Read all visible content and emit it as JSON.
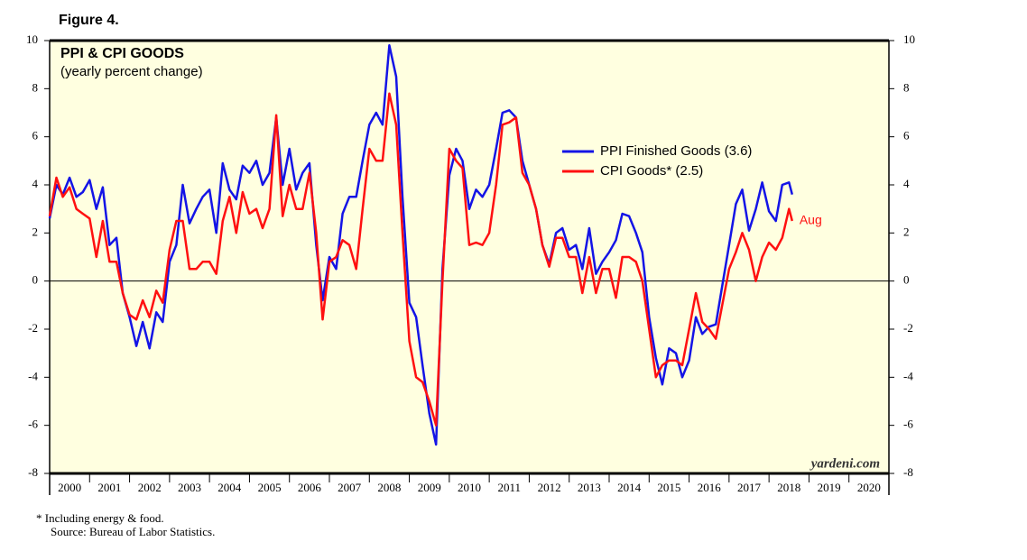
{
  "chart_data": {
    "type": "line",
    "figure_label": "Figure 4.",
    "title": "PPI & CPI GOODS",
    "subtitle": "(yearly percent change)",
    "watermark": "yardeni.com",
    "annotation": "Aug",
    "footnote": "* Including energy & food.",
    "source": "Source: Bureau of Labor Statistics.",
    "x": [
      2000.0,
      2000.17,
      2000.33,
      2000.5,
      2000.67,
      2000.83,
      2001.0,
      2001.17,
      2001.33,
      2001.5,
      2001.67,
      2001.83,
      2002.0,
      2002.17,
      2002.33,
      2002.5,
      2002.67,
      2002.83,
      2003.0,
      2003.17,
      2003.33,
      2003.5,
      2003.67,
      2003.83,
      2004.0,
      2004.17,
      2004.33,
      2004.5,
      2004.67,
      2004.83,
      2005.0,
      2005.17,
      2005.33,
      2005.5,
      2005.67,
      2005.83,
      2006.0,
      2006.17,
      2006.33,
      2006.5,
      2006.67,
      2006.83,
      2007.0,
      2007.17,
      2007.33,
      2007.5,
      2007.67,
      2007.83,
      2008.0,
      2008.17,
      2008.33,
      2008.5,
      2008.67,
      2008.83,
      2009.0,
      2009.17,
      2009.33,
      2009.5,
      2009.67,
      2009.83,
      2010.0,
      2010.17,
      2010.33,
      2010.5,
      2010.67,
      2010.83,
      2011.0,
      2011.17,
      2011.33,
      2011.5,
      2011.67,
      2011.83,
      2012.0,
      2012.17,
      2012.33,
      2012.5,
      2012.67,
      2012.83,
      2013.0,
      2013.17,
      2013.33,
      2013.5,
      2013.67,
      2013.83,
      2014.0,
      2014.17,
      2014.33,
      2014.5,
      2014.67,
      2014.83,
      2015.0,
      2015.17,
      2015.33,
      2015.5,
      2015.67,
      2015.83,
      2016.0,
      2016.17,
      2016.33,
      2016.5,
      2016.67,
      2016.83,
      2017.0,
      2017.17,
      2017.33,
      2017.5,
      2017.67,
      2017.83,
      2018.0,
      2018.17,
      2018.33,
      2018.5,
      2018.58
    ],
    "series": [
      {
        "name": "PPI Finished Goods (3.6)",
        "color": "#1414e6",
        "values": [
          2.6,
          4.0,
          3.6,
          4.3,
          3.5,
          3.7,
          4.2,
          3.0,
          3.9,
          1.5,
          1.8,
          -0.5,
          -1.5,
          -2.7,
          -1.7,
          -2.8,
          -1.3,
          -1.7,
          0.8,
          1.5,
          4.0,
          2.4,
          3.0,
          3.5,
          3.8,
          2.0,
          4.9,
          3.8,
          3.4,
          4.8,
          4.5,
          5.0,
          4.0,
          4.5,
          6.8,
          4.0,
          5.5,
          3.8,
          4.5,
          4.9,
          1.5,
          -0.8,
          1.0,
          0.5,
          2.8,
          3.5,
          3.5,
          5.0,
          6.5,
          7.0,
          6.5,
          9.8,
          8.5,
          3.5,
          -0.9,
          -1.5,
          -3.5,
          -5.5,
          -6.8,
          0.5,
          4.4,
          5.5,
          5.0,
          3.0,
          3.8,
          3.5,
          4.0,
          5.5,
          7.0,
          7.1,
          6.8,
          5.0,
          4.0,
          3.0,
          1.5,
          0.7,
          2.0,
          2.2,
          1.3,
          1.5,
          0.5,
          2.2,
          0.3,
          0.8,
          1.2,
          1.7,
          2.8,
          2.7,
          2.0,
          1.2,
          -1.5,
          -3.2,
          -4.3,
          -2.8,
          -3.0,
          -4.0,
          -3.3,
          -1.5,
          -2.2,
          -1.9,
          -1.8,
          -0.2,
          1.5,
          3.2,
          3.8,
          2.1,
          3.0,
          4.1,
          2.9,
          2.5,
          4.0,
          4.1,
          3.6
        ]
      },
      {
        "name": "CPI Goods* (2.5)",
        "color": "#ff1010",
        "values": [
          2.7,
          4.3,
          3.5,
          3.9,
          3.0,
          2.8,
          2.6,
          1.0,
          2.5,
          0.8,
          0.8,
          -0.5,
          -1.4,
          -1.6,
          -0.8,
          -1.5,
          -0.4,
          -0.9,
          1.3,
          2.5,
          2.5,
          0.5,
          0.5,
          0.8,
          0.8,
          0.3,
          2.5,
          3.5,
          2.0,
          3.7,
          2.8,
          3.0,
          2.2,
          3.0,
          6.9,
          2.7,
          4.0,
          3.0,
          3.0,
          4.5,
          2.0,
          -1.6,
          0.8,
          1.0,
          1.7,
          1.5,
          0.5,
          3.0,
          5.5,
          5.0,
          5.0,
          7.8,
          6.5,
          2.0,
          -2.5,
          -4.0,
          -4.2,
          -5.0,
          -6.0,
          0.0,
          5.5,
          5.0,
          4.7,
          1.5,
          1.6,
          1.5,
          2.0,
          4.0,
          6.5,
          6.6,
          6.8,
          4.5,
          4.0,
          3.0,
          1.5,
          0.6,
          1.8,
          1.8,
          1.0,
          1.0,
          -0.5,
          1.0,
          -0.5,
          0.5,
          0.5,
          -0.7,
          1.0,
          1.0,
          0.8,
          0.0,
          -2.0,
          -4.0,
          -3.5,
          -3.3,
          -3.3,
          -3.5,
          -2.0,
          -0.5,
          -1.7,
          -2.0,
          -2.4,
          -1.0,
          0.5,
          1.2,
          2.0,
          1.3,
          0.0,
          1.0,
          1.6,
          1.3,
          1.8,
          3.0,
          2.5
        ]
      }
    ],
    "xlim": [
      2000,
      2021
    ],
    "xticks": [
      2000,
      2001,
      2002,
      2003,
      2004,
      2005,
      2006,
      2007,
      2008,
      2009,
      2010,
      2011,
      2012,
      2013,
      2014,
      2015,
      2016,
      2017,
      2018,
      2019,
      2020
    ],
    "ylim": [
      -8,
      10
    ],
    "yticks": [
      -8,
      -6,
      -4,
      -2,
      0,
      2,
      4,
      6,
      8,
      10
    ],
    "y2lim": [
      -8,
      10
    ],
    "y2ticks": [
      -8,
      -6,
      -4,
      -2,
      0,
      2,
      4,
      6,
      8,
      10
    ],
    "background": "#ffffe0"
  }
}
